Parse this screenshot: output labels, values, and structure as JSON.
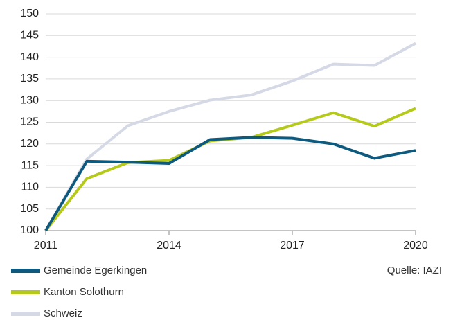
{
  "chart_data": {
    "type": "line",
    "x": [
      2011,
      2012,
      2013,
      2014,
      2015,
      2016,
      2017,
      2018,
      2019,
      2020
    ],
    "series": [
      {
        "name": "Gemeinde Egerkingen",
        "color": "#0e5a7e",
        "values": [
          100,
          116,
          115.8,
          115.5,
          121,
          121.5,
          121.3,
          120,
          116.7,
          118.5
        ]
      },
      {
        "name": "Kanton Solothurn",
        "color": "#b5c91a",
        "values": [
          100,
          112,
          115.7,
          116.2,
          120.7,
          121.5,
          124.3,
          127.2,
          124.1,
          128.2
        ]
      },
      {
        "name": "Schweiz",
        "color": "#d5d9e6",
        "values": [
          100,
          116.5,
          124.2,
          127.5,
          130.1,
          131.3,
          134.5,
          138.4,
          138.1,
          143.2
        ]
      }
    ],
    "xlim": [
      2011,
      2020
    ],
    "xticks": [
      2011,
      2014,
      2017,
      2020
    ],
    "ylim": [
      100,
      150
    ],
    "yticks": [
      100,
      105,
      110,
      115,
      120,
      125,
      130,
      135,
      140,
      145,
      150
    ],
    "grid": true,
    "annotation": "Quelle: IAZI"
  }
}
